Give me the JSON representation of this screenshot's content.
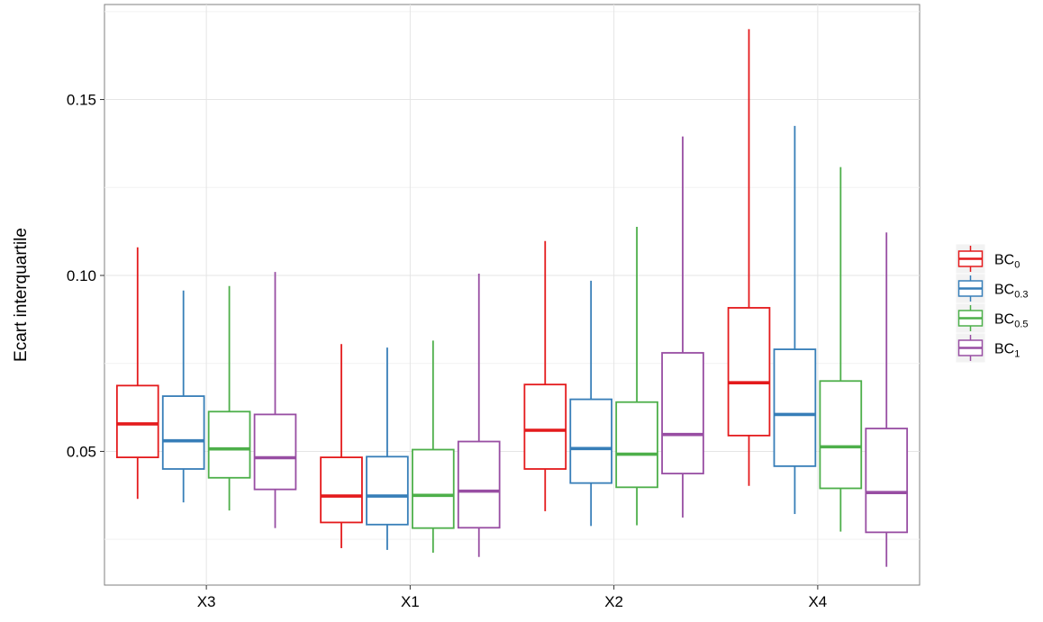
{
  "chart_data": {
    "type": "box",
    "title": "",
    "xlabel": "",
    "ylabel": "Ecart interquartile",
    "ylim": [
      0.012,
      0.177
    ],
    "yticks": [
      "0.05",
      "0.10",
      "0.15"
    ],
    "ytick_values": [
      0.05,
      0.1,
      0.15
    ],
    "ygrid_minor": [
      0.025,
      0.075,
      0.125,
      0.175
    ],
    "grid": true,
    "legend_position": "right",
    "categories": [
      "X3",
      "X1",
      "X2",
      "X4"
    ],
    "series": [
      {
        "name": "BC0",
        "label_base": "BC",
        "label_sub": "0",
        "color": "#e41a1c",
        "boxes": [
          {
            "min": 0.0365,
            "q1": 0.0483,
            "median": 0.0578,
            "q3": 0.0687,
            "max": 0.108
          },
          {
            "min": 0.0225,
            "q1": 0.0298,
            "median": 0.0373,
            "q3": 0.0483,
            "max": 0.0805
          },
          {
            "min": 0.033,
            "q1": 0.045,
            "median": 0.056,
            "q3": 0.069,
            "max": 0.1098
          },
          {
            "min": 0.0402,
            "q1": 0.0545,
            "median": 0.0695,
            "q3": 0.0908,
            "max": 0.17
          }
        ]
      },
      {
        "name": "BC0.3",
        "label_base": "BC",
        "label_sub": "0.3",
        "color": "#377eb8",
        "boxes": [
          {
            "min": 0.0355,
            "q1": 0.045,
            "median": 0.053,
            "q3": 0.0657,
            "max": 0.0957
          },
          {
            "min": 0.022,
            "q1": 0.0292,
            "median": 0.0373,
            "q3": 0.0485,
            "max": 0.0795
          },
          {
            "min": 0.0288,
            "q1": 0.041,
            "median": 0.0508,
            "q3": 0.0648,
            "max": 0.0985
          },
          {
            "min": 0.0322,
            "q1": 0.0458,
            "median": 0.0605,
            "q3": 0.079,
            "max": 0.1425
          }
        ]
      },
      {
        "name": "BC0.5",
        "label_base": "BC",
        "label_sub": "0.5",
        "color": "#4daf4a",
        "boxes": [
          {
            "min": 0.0332,
            "q1": 0.0425,
            "median": 0.0507,
            "q3": 0.0613,
            "max": 0.097
          },
          {
            "min": 0.0212,
            "q1": 0.0282,
            "median": 0.0375,
            "q3": 0.0505,
            "max": 0.0815
          },
          {
            "min": 0.029,
            "q1": 0.0398,
            "median": 0.0492,
            "q3": 0.064,
            "max": 0.1138
          },
          {
            "min": 0.0272,
            "q1": 0.0395,
            "median": 0.0513,
            "q3": 0.07,
            "max": 0.1308
          }
        ]
      },
      {
        "name": "BC1",
        "label_base": "BC",
        "label_sub": "1",
        "color": "#984ea3",
        "boxes": [
          {
            "min": 0.0282,
            "q1": 0.0392,
            "median": 0.0482,
            "q3": 0.0605,
            "max": 0.101
          },
          {
            "min": 0.02,
            "q1": 0.0283,
            "median": 0.0387,
            "q3": 0.0528,
            "max": 0.1005
          },
          {
            "min": 0.0312,
            "q1": 0.0437,
            "median": 0.0548,
            "q3": 0.078,
            "max": 0.1395
          },
          {
            "min": 0.0172,
            "q1": 0.027,
            "median": 0.0383,
            "q3": 0.0565,
            "max": 0.1122
          }
        ]
      }
    ]
  }
}
